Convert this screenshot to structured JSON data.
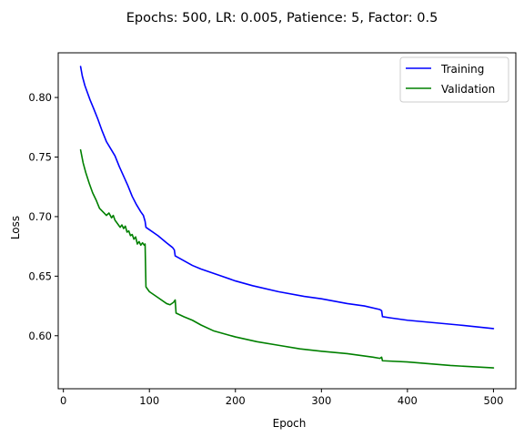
{
  "chart_data": {
    "type": "line",
    "title": "Epochs: 500, LR: 0.005, Patience: 5, Factor: 0.5",
    "xlabel": "Epoch",
    "ylabel": "Loss",
    "xlim": [
      -6,
      526
    ],
    "ylim": [
      0.5555,
      0.8375
    ],
    "xticks": [
      0,
      100,
      200,
      300,
      400,
      500
    ],
    "yticks": [
      0.6,
      0.65,
      0.7,
      0.75,
      0.8
    ],
    "xtick_labels": [
      "0",
      "100",
      "200",
      "300",
      "400",
      "500"
    ],
    "ytick_labels": [
      "0.60",
      "0.65",
      "0.70",
      "0.75",
      "0.80"
    ],
    "grid": false,
    "legend": {
      "placement": "top-right"
    },
    "series": [
      {
        "name": "Training",
        "color": "#0000ff",
        "x": [
          20,
          22,
          25,
          28,
          31,
          35,
          40,
          45,
          50,
          55,
          60,
          65,
          70,
          75,
          80,
          85,
          90,
          93,
          95,
          96,
          100,
          110,
          120,
          127,
          129,
          130,
          140,
          150,
          160,
          180,
          200,
          220,
          250,
          280,
          300,
          330,
          350,
          368,
          370,
          371,
          380,
          400,
          430,
          460,
          500
        ],
        "y": [
          0.826,
          0.818,
          0.81,
          0.804,
          0.798,
          0.791,
          0.782,
          0.772,
          0.763,
          0.757,
          0.751,
          0.742,
          0.734,
          0.726,
          0.717,
          0.71,
          0.704,
          0.701,
          0.696,
          0.691,
          0.689,
          0.684,
          0.678,
          0.674,
          0.672,
          0.667,
          0.663,
          0.659,
          0.656,
          0.651,
          0.646,
          0.642,
          0.637,
          0.633,
          0.631,
          0.627,
          0.625,
          0.622,
          0.621,
          0.616,
          0.615,
          0.613,
          0.611,
          0.609,
          0.606
        ]
      },
      {
        "name": "Validation",
        "color": "#008000",
        "x": [
          20,
          23,
          26,
          30,
          34,
          38,
          42,
          46,
          50,
          53,
          56,
          58,
          60,
          63,
          66,
          68,
          70,
          72,
          74,
          76,
          78,
          80,
          82,
          84,
          86,
          88,
          90,
          92,
          94,
          95,
          96,
          100,
          110,
          120,
          124,
          128,
          130,
          131,
          140,
          150,
          160,
          175,
          200,
          225,
          250,
          275,
          300,
          330,
          360,
          368,
          370,
          371,
          400,
          450,
          500
        ],
        "y": [
          0.756,
          0.745,
          0.737,
          0.728,
          0.72,
          0.714,
          0.707,
          0.704,
          0.701,
          0.703,
          0.699,
          0.701,
          0.697,
          0.694,
          0.691,
          0.693,
          0.69,
          0.692,
          0.687,
          0.688,
          0.684,
          0.685,
          0.681,
          0.683,
          0.677,
          0.679,
          0.676,
          0.678,
          0.676,
          0.677,
          0.641,
          0.637,
          0.632,
          0.627,
          0.626,
          0.628,
          0.63,
          0.619,
          0.616,
          0.613,
          0.609,
          0.604,
          0.599,
          0.595,
          0.592,
          0.589,
          0.587,
          0.585,
          0.582,
          0.581,
          0.582,
          0.579,
          0.578,
          0.575,
          0.573
        ]
      }
    ]
  }
}
